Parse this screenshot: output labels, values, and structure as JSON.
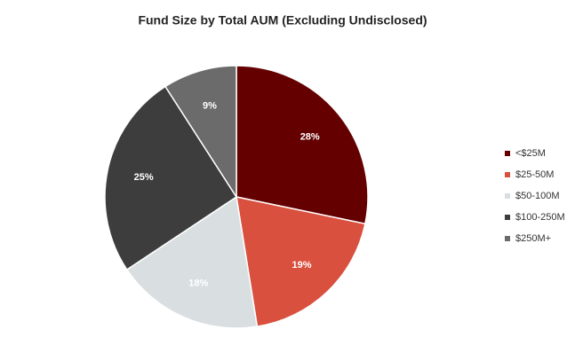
{
  "chart_data": {
    "type": "pie",
    "title": "Fund Size by Total AUM (Excluding Undisclosed)",
    "categories": [
      "<$25M",
      "$25-50M",
      "$50-100M",
      "$100-250M",
      "$250M+"
    ],
    "values": [
      28,
      19,
      18,
      25,
      9
    ],
    "value_labels": [
      "28%",
      "19%",
      "18%",
      "25%",
      "9%"
    ],
    "colors": [
      "#640000",
      "#d9503e",
      "#d9dfe1",
      "#3d3d3d",
      "#6b6b6b"
    ],
    "legend": "right"
  }
}
